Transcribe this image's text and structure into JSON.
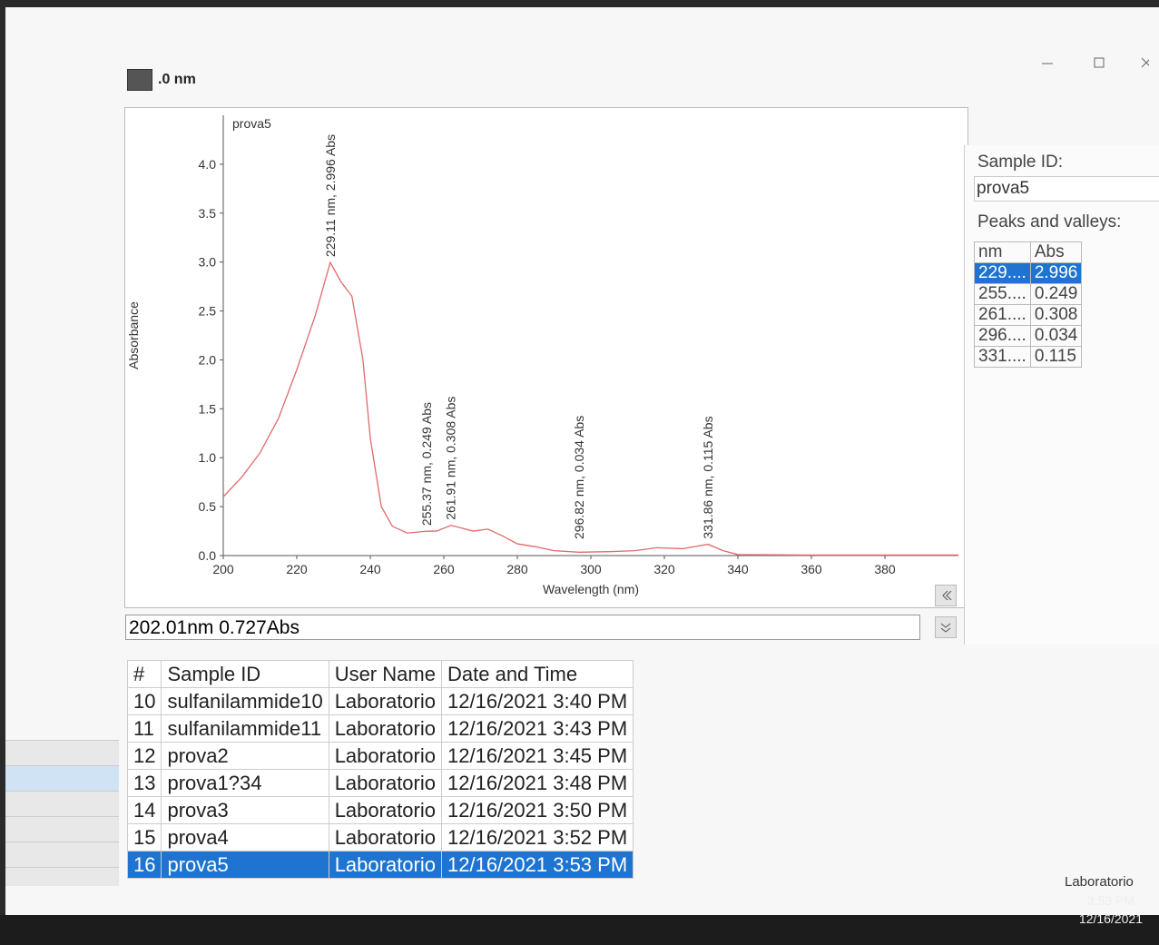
{
  "toolbar": {
    "label": ".0 nm"
  },
  "chart_data": {
    "type": "line",
    "xlabel": "Wavelength (nm)",
    "ylabel": "Absorbance",
    "xlim": [
      200,
      400
    ],
    "ylim": [
      0,
      4.5
    ],
    "xticks": [
      200,
      220,
      240,
      260,
      280,
      300,
      320,
      340,
      360,
      380
    ],
    "yticks": [
      {
        "value": 0,
        "label": "0.0"
      },
      0.5,
      {
        "value": 1,
        "label": "1.0"
      },
      1.5,
      {
        "value": 2,
        "label": "2.0"
      },
      2.5,
      {
        "value": 3,
        "label": "3.0"
      },
      3.5,
      {
        "value": 4,
        "label": "4.0"
      }
    ],
    "series": [
      {
        "name": "prova5",
        "color": "#e06a6a",
        "x": [
          200,
          205,
          210,
          215,
          220,
          225,
          229.11,
          232,
          235,
          238,
          240,
          243,
          246,
          250,
          255.37,
          258,
          261.91,
          265,
          268,
          272,
          276,
          280,
          285,
          290,
          296.82,
          305,
          312,
          318,
          325,
          331.86,
          336,
          340,
          360,
          380,
          400
        ],
        "values": [
          0.6,
          0.8,
          1.05,
          1.4,
          1.9,
          2.45,
          2.996,
          2.8,
          2.65,
          2.0,
          1.2,
          0.5,
          0.3,
          0.23,
          0.249,
          0.25,
          0.308,
          0.28,
          0.25,
          0.27,
          0.2,
          0.12,
          0.09,
          0.05,
          0.034,
          0.04,
          0.05,
          0.08,
          0.07,
          0.115,
          0.05,
          0.01,
          0.005,
          0.005,
          0.005
        ]
      }
    ],
    "annotations": [
      {
        "x": 229.11,
        "y": 2.996,
        "text": "229.11 nm, 2.996 Abs"
      },
      {
        "x": 255.37,
        "y": 0.249,
        "text": "255.37 nm, 0.249 Abs"
      },
      {
        "x": 261.91,
        "y": 0.308,
        "text": "261.91 nm, 0.308 Abs"
      },
      {
        "x": 296.82,
        "y": 0.034,
        "text": "296.82 nm, 0.034 Abs"
      },
      {
        "x": 331.86,
        "y": 0.115,
        "text": "331.86 nm, 0.115 Abs"
      }
    ]
  },
  "cursor_readout": "202.01nm 0.727Abs",
  "side_panel": {
    "sample_id_label": "Sample ID:",
    "sample_id": "prova5",
    "peaks_label": "Peaks and valleys:",
    "peaks_table": {
      "columns": [
        "nm",
        "Abs"
      ],
      "rows": [
        [
          "229....",
          "2.996"
        ],
        [
          "255....",
          "0.249"
        ],
        [
          "261....",
          "0.308"
        ],
        [
          "296....",
          "0.034"
        ],
        [
          "331....",
          "0.115"
        ]
      ]
    }
  },
  "samples_table": {
    "columns": [
      "#",
      "Sample ID",
      "User Name",
      "Date and Time"
    ],
    "rows": [
      [
        "10",
        "sulfanilammide10",
        "Laboratorio",
        "12/16/2021 3:40 PM"
      ],
      [
        "11",
        "sulfanilammide11",
        "Laboratorio",
        "12/16/2021 3:43 PM"
      ],
      [
        "12",
        "prova2",
        "Laboratorio",
        "12/16/2021 3:45 PM"
      ],
      [
        "13",
        "prova1?34",
        "Laboratorio",
        "12/16/2021 3:48 PM"
      ],
      [
        "14",
        "prova3",
        "Laboratorio",
        "12/16/2021 3:50 PM"
      ],
      [
        "15",
        "prova4",
        "Laboratorio",
        "12/16/2021 3:52 PM"
      ],
      [
        "16",
        "prova5",
        "Laboratorio",
        "12/16/2021 3:53 PM"
      ]
    ]
  },
  "status": {
    "user": "Laboratorio"
  },
  "taskbar": {
    "time": "3:53 PM",
    "date": "12/16/2021"
  }
}
